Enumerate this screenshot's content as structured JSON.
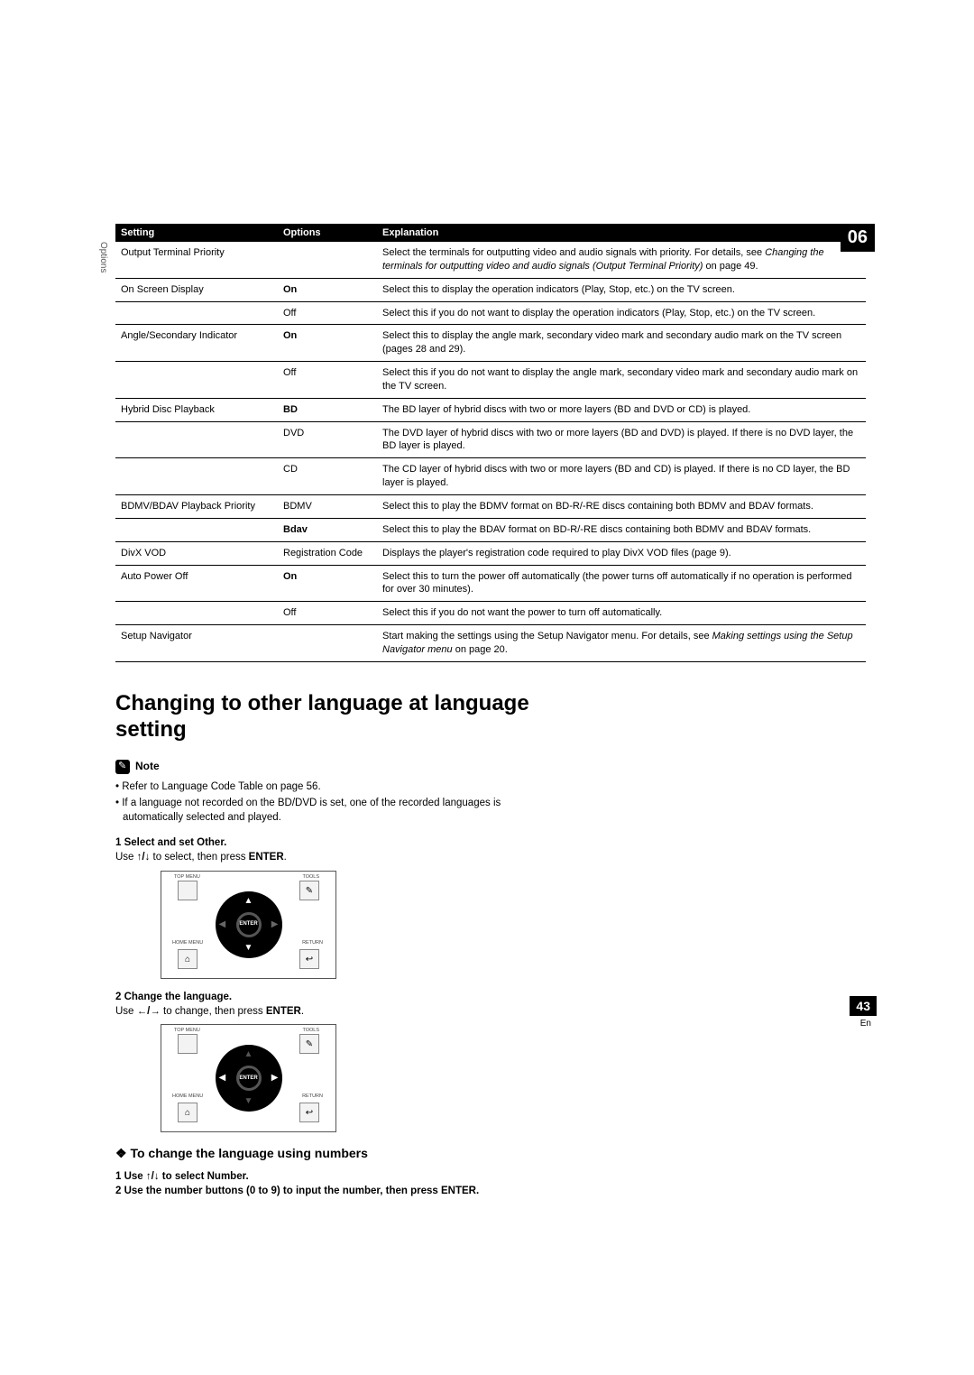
{
  "chapter": "06",
  "sideLabel": "Options",
  "pageNumber": "43",
  "pageLang": "En",
  "table": {
    "headers": {
      "setting": "Setting",
      "options": "Options",
      "explanation": "Explanation"
    },
    "rows": [
      {
        "setting": "Output Terminal Priority",
        "option": "",
        "optionBold": false,
        "explanation": "Select the terminals for outputting video and audio signals with priority. For details, see ",
        "italic": "Changing the terminals for outputting video and audio signals (Output Terminal Priority)",
        "tail": " on page 49."
      },
      {
        "setting": "On Screen Display",
        "option": "On",
        "optionBold": true,
        "explanation": "Select this to display the operation indicators (Play, Stop, etc.) on the TV screen."
      },
      {
        "setting": "",
        "option": "Off",
        "optionBold": false,
        "explanation": "Select this if you do not want to display the operation indicators (Play, Stop, etc.) on the TV screen."
      },
      {
        "setting": "Angle/Secondary Indicator",
        "option": "On",
        "optionBold": true,
        "explanation": "Select this to display the angle mark, secondary video mark and secondary audio mark on the TV screen (pages 28 and 29)."
      },
      {
        "setting": "",
        "option": "Off",
        "optionBold": false,
        "explanation": "Select this if you do not want to display the angle mark, secondary video mark and secondary audio mark on the TV screen."
      },
      {
        "setting": "Hybrid Disc Playback",
        "option": "BD",
        "optionBold": true,
        "explanation": "The BD layer of hybrid discs with two or more layers (BD and DVD or CD) is played."
      },
      {
        "setting": "",
        "option": "DVD",
        "optionBold": false,
        "explanation": "The DVD layer of hybrid discs with two or more layers (BD and DVD) is played. If there is no DVD layer, the BD layer is played."
      },
      {
        "setting": "",
        "option": "CD",
        "optionBold": false,
        "explanation": "The CD layer of hybrid discs with two or more layers (BD and CD) is played. If there is no CD layer, the BD layer is played."
      },
      {
        "setting": "BDMV/BDAV Playback Priority",
        "option": "BDMV",
        "optionBold": false,
        "explanation": "Select this to play the BDMV format on BD-R/-RE discs containing both BDMV and BDAV formats."
      },
      {
        "setting": "",
        "option": "Bdav",
        "optionBold": true,
        "explanation": "Select this to play the BDAV format on BD-R/-RE discs containing both BDMV and BDAV formats."
      },
      {
        "setting": "DivX VOD",
        "option": "Registration Code",
        "optionBold": false,
        "explanation": "Displays the player's registration code required to play DivX VOD files (page 9)."
      },
      {
        "setting": "Auto Power Off",
        "option": "On",
        "optionBold": true,
        "explanation": "Select this to turn the power off automatically (the power turns off automatically if no operation is performed for over 30 minutes)."
      },
      {
        "setting": "",
        "option": "Off",
        "optionBold": false,
        "explanation": "Select this if you do not want the power to turn off automatically."
      },
      {
        "setting": "Setup Navigator",
        "option": "",
        "optionBold": false,
        "explanation": "Start making the settings using the Setup Navigator menu. For details, see ",
        "italic": "Making settings using the Setup Navigator menu",
        "tail": " on page 20."
      }
    ]
  },
  "heading": "Changing to other language at language setting",
  "note": {
    "title": "Note",
    "items": [
      {
        "pre": "Refer to ",
        "italic": "Language Code Table",
        "post": " on page 56."
      },
      {
        "pre": "If a language not recorded on the BD/DVD is set, one of the recorded languages is automatically selected and played.",
        "italic": "",
        "post": ""
      }
    ]
  },
  "step1": {
    "title": "1    Select and set Other.",
    "bodyPre": "Use ",
    "arrows": "↑/↓",
    "bodyMid": " to select, then press ",
    "enter": "ENTER",
    "bodyPost": "."
  },
  "step2": {
    "title": "2    Change the language.",
    "bodyPre": "Use ",
    "arrows": "←/→",
    "bodyMid": " to change, then press ",
    "enter": "ENTER",
    "bodyPost": "."
  },
  "subheading": "To change the language using numbers",
  "numStep1": "1    Use  ↑/↓  to select Number.",
  "numStep2": "2    Use the number buttons (0 to 9) to input the number, then press ENTER.",
  "remote": {
    "tl": "TOP MENU",
    "tr": "TOOLS",
    "bl": "HOME MENU",
    "br": "RETURN",
    "center": "ENTER"
  }
}
